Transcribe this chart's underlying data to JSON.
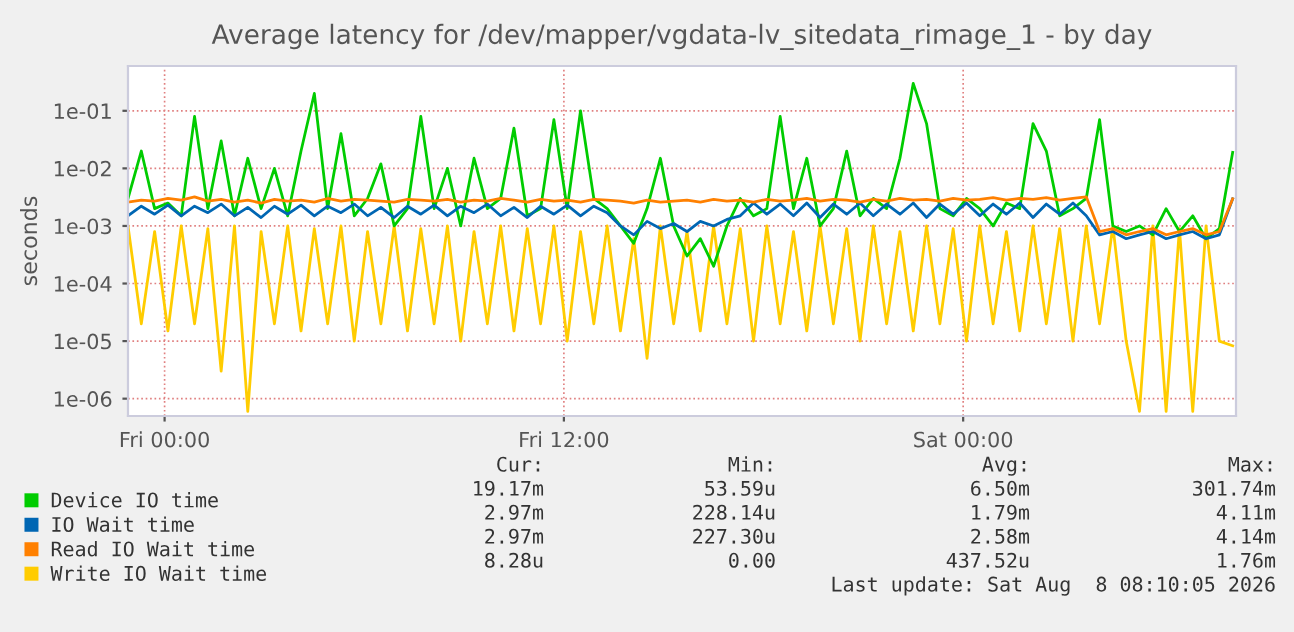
{
  "chart_data": {
    "type": "line",
    "title": "Average latency for /dev/mapper/vgdata-lv_sitedata_rimage_1 - by day",
    "ylabel": "seconds",
    "log": "y",
    "grid": true,
    "legend": "bottom",
    "xlim": [
      "2026-08-06T22:54",
      "2026-08-08T08:12"
    ],
    "xticks": [
      {
        "value": "2026-08-07T00:00",
        "label": "Fri 00:00"
      },
      {
        "value": "2026-08-07T12:00",
        "label": "Fri 12:00"
      },
      {
        "value": "2026-08-08T00:00",
        "label": "Sat 00:00"
      }
    ],
    "ylim": [
      5e-07,
      0.6
    ],
    "yticks": [
      {
        "value": 1e-06,
        "label": "1e-06"
      },
      {
        "value": 1e-05,
        "label": "1e-05"
      },
      {
        "value": 0.0001,
        "label": "1e-04"
      },
      {
        "value": 0.001,
        "label": "1e-03"
      },
      {
        "value": 0.01,
        "label": "1e-02"
      },
      {
        "value": 0.1,
        "label": "1e-01"
      }
    ],
    "x": [
      "2026-08-06T22:54",
      "2026-08-06T23:18",
      "2026-08-06T23:42",
      "2026-08-07T00:06",
      "2026-08-07T00:30",
      "2026-08-07T00:54",
      "2026-08-07T01:18",
      "2026-08-07T01:42",
      "2026-08-07T02:06",
      "2026-08-07T02:30",
      "2026-08-07T02:54",
      "2026-08-07T03:18",
      "2026-08-07T03:42",
      "2026-08-07T04:06",
      "2026-08-07T04:30",
      "2026-08-07T04:54",
      "2026-08-07T05:18",
      "2026-08-07T05:42",
      "2026-08-07T06:06",
      "2026-08-07T06:30",
      "2026-08-07T06:54",
      "2026-08-07T07:18",
      "2026-08-07T07:42",
      "2026-08-07T08:06",
      "2026-08-07T08:30",
      "2026-08-07T08:54",
      "2026-08-07T09:18",
      "2026-08-07T09:42",
      "2026-08-07T10:06",
      "2026-08-07T10:30",
      "2026-08-07T10:54",
      "2026-08-07T11:18",
      "2026-08-07T11:42",
      "2026-08-07T12:06",
      "2026-08-07T12:30",
      "2026-08-07T12:54",
      "2026-08-07T13:18",
      "2026-08-07T13:42",
      "2026-08-07T14:06",
      "2026-08-07T14:30",
      "2026-08-07T14:54",
      "2026-08-07T15:18",
      "2026-08-07T15:42",
      "2026-08-07T16:06",
      "2026-08-07T16:30",
      "2026-08-07T16:54",
      "2026-08-07T17:18",
      "2026-08-07T17:42",
      "2026-08-07T18:06",
      "2026-08-07T18:30",
      "2026-08-07T18:54",
      "2026-08-07T19:18",
      "2026-08-07T19:42",
      "2026-08-07T20:06",
      "2026-08-07T20:30",
      "2026-08-07T20:54",
      "2026-08-07T21:18",
      "2026-08-07T21:42",
      "2026-08-07T22:06",
      "2026-08-07T22:30",
      "2026-08-07T22:54",
      "2026-08-07T23:18",
      "2026-08-07T23:42",
      "2026-08-08T00:06",
      "2026-08-08T00:30",
      "2026-08-08T00:54",
      "2026-08-08T01:18",
      "2026-08-08T01:42",
      "2026-08-08T02:06",
      "2026-08-08T02:30",
      "2026-08-08T02:54",
      "2026-08-08T03:18",
      "2026-08-08T03:42",
      "2026-08-08T04:06",
      "2026-08-08T04:30",
      "2026-08-08T04:54",
      "2026-08-08T05:18",
      "2026-08-08T05:42",
      "2026-08-08T06:06",
      "2026-08-08T06:30",
      "2026-08-08T06:54",
      "2026-08-08T07:18",
      "2026-08-08T07:42",
      "2026-08-08T08:06"
    ],
    "series": [
      {
        "name": "Write IO Wait time",
        "color": "#ffcc00",
        "values": [
          0.001,
          2e-05,
          0.0008,
          1.5e-05,
          0.001,
          2e-05,
          0.0009,
          3e-06,
          0.001,
          6e-07,
          0.0008,
          2e-05,
          0.001,
          1.5e-05,
          0.0009,
          2e-05,
          0.001,
          1e-05,
          0.0008,
          2e-05,
          0.001,
          1.5e-05,
          0.0009,
          2e-05,
          0.001,
          1e-05,
          0.0008,
          2e-05,
          0.001,
          1.5e-05,
          0.0009,
          2e-05,
          0.001,
          1e-05,
          0.0008,
          2e-05,
          0.001,
          1.5e-05,
          0.0006,
          5e-06,
          0.001,
          2e-05,
          0.0008,
          1.5e-05,
          0.001,
          2e-05,
          0.0009,
          1e-05,
          0.001,
          2e-05,
          0.0008,
          1.5e-05,
          0.001,
          2e-05,
          0.0009,
          1e-05,
          0.001,
          2e-05,
          0.0008,
          1.5e-05,
          0.001,
          2e-05,
          0.0009,
          1e-05,
          0.001,
          2e-05,
          0.0008,
          1.5e-05,
          0.001,
          2e-05,
          0.0009,
          1e-05,
          0.001,
          2e-05,
          0.001,
          1e-05,
          6e-07,
          0.001,
          6e-07,
          0.0009,
          6e-07,
          0.001,
          1e-05,
          8.28e-06
        ]
      },
      {
        "name": "Device IO time",
        "color": "#00cc00",
        "values": [
          0.003,
          0.02,
          0.002,
          0.0025,
          0.0015,
          0.08,
          0.002,
          0.03,
          0.0015,
          0.015,
          0.002,
          0.01,
          0.0015,
          0.02,
          0.2,
          0.002,
          0.04,
          0.0015,
          0.003,
          0.012,
          0.001,
          0.002,
          0.08,
          0.002,
          0.01,
          0.001,
          0.015,
          0.002,
          0.003,
          0.05,
          0.0015,
          0.002,
          0.07,
          0.002,
          0.1,
          0.003,
          0.002,
          0.001,
          0.0005,
          0.002,
          0.015,
          0.001,
          0.0003,
          0.0006,
          0.0002,
          0.001,
          0.003,
          0.0015,
          0.002,
          0.08,
          0.002,
          0.015,
          0.001,
          0.002,
          0.02,
          0.0015,
          0.003,
          0.002,
          0.015,
          0.3,
          0.06,
          0.002,
          0.0015,
          0.003,
          0.002,
          0.001,
          0.0025,
          0.002,
          0.06,
          0.02,
          0.0015,
          0.002,
          0.003,
          0.07,
          0.001,
          0.0008,
          0.001,
          0.0007,
          0.002,
          0.0008,
          0.0015,
          0.0006,
          0.0009,
          0.019
        ]
      },
      {
        "name": "IO Wait time",
        "color": "#0066b3",
        "values": [
          0.0015,
          0.0022,
          0.0016,
          0.0023,
          0.0015,
          0.0022,
          0.0017,
          0.0024,
          0.0015,
          0.0021,
          0.0014,
          0.0022,
          0.0016,
          0.0023,
          0.0015,
          0.0022,
          0.0017,
          0.0024,
          0.0015,
          0.0021,
          0.0014,
          0.0022,
          0.0016,
          0.0023,
          0.0015,
          0.0022,
          0.0017,
          0.0024,
          0.0015,
          0.0021,
          0.0014,
          0.0022,
          0.0016,
          0.0023,
          0.0015,
          0.0022,
          0.0017,
          0.001,
          0.0007,
          0.0012,
          0.0009,
          0.0011,
          0.0008,
          0.0012,
          0.001,
          0.0013,
          0.0015,
          0.0025,
          0.0016,
          0.0024,
          0.0015,
          0.0025,
          0.0014,
          0.0024,
          0.0016,
          0.0025,
          0.0015,
          0.0024,
          0.0016,
          0.0025,
          0.0014,
          0.0024,
          0.0016,
          0.0025,
          0.0015,
          0.0024,
          0.0016,
          0.0025,
          0.0014,
          0.0024,
          0.0016,
          0.0025,
          0.0015,
          0.0007,
          0.0008,
          0.0006,
          0.0007,
          0.0008,
          0.0006,
          0.0007,
          0.0008,
          0.0006,
          0.0007,
          0.00297
        ]
      },
      {
        "name": "Read IO Wait time",
        "color": "#ff8000",
        "values": [
          0.0026,
          0.0028,
          0.0027,
          0.003,
          0.0028,
          0.0032,
          0.0027,
          0.0029,
          0.0026,
          0.0028,
          0.0025,
          0.0029,
          0.0027,
          0.0028,
          0.0026,
          0.003,
          0.0027,
          0.0029,
          0.0028,
          0.0027,
          0.0026,
          0.0029,
          0.0028,
          0.0027,
          0.0029,
          0.0026,
          0.0028,
          0.0027,
          0.003,
          0.0028,
          0.0026,
          0.0029,
          0.0027,
          0.0028,
          0.0026,
          0.0029,
          0.0028,
          0.0027,
          0.0025,
          0.0028,
          0.0026,
          0.0027,
          0.0028,
          0.0026,
          0.0029,
          0.0027,
          0.0028,
          0.0026,
          0.0029,
          0.0027,
          0.0028,
          0.003,
          0.0027,
          0.0029,
          0.0028,
          0.0026,
          0.0029,
          0.0027,
          0.003,
          0.0028,
          0.0029,
          0.0027,
          0.003,
          0.0028,
          0.0029,
          0.0031,
          0.0028,
          0.003,
          0.0029,
          0.0031,
          0.0028,
          0.003,
          0.0032,
          0.0008,
          0.0009,
          0.0007,
          0.0008,
          0.0009,
          0.0007,
          0.0008,
          0.0009,
          0.0007,
          0.0008,
          0.00297
        ]
      }
    ],
    "annotations": [
      "Cur:",
      "Min:",
      "Avg:",
      "Max:",
      "19.17m",
      "53.59u",
      "6.50m",
      "301.74m",
      "2.97m",
      "228.14u",
      "1.79m",
      "4.11m",
      "2.97m",
      "227.30u",
      "2.58m",
      "4.14m",
      "8.28u",
      "0.00",
      "437.52u",
      "1.76m",
      "Last update: Sat Aug  8 08:10:05 2026"
    ]
  }
}
